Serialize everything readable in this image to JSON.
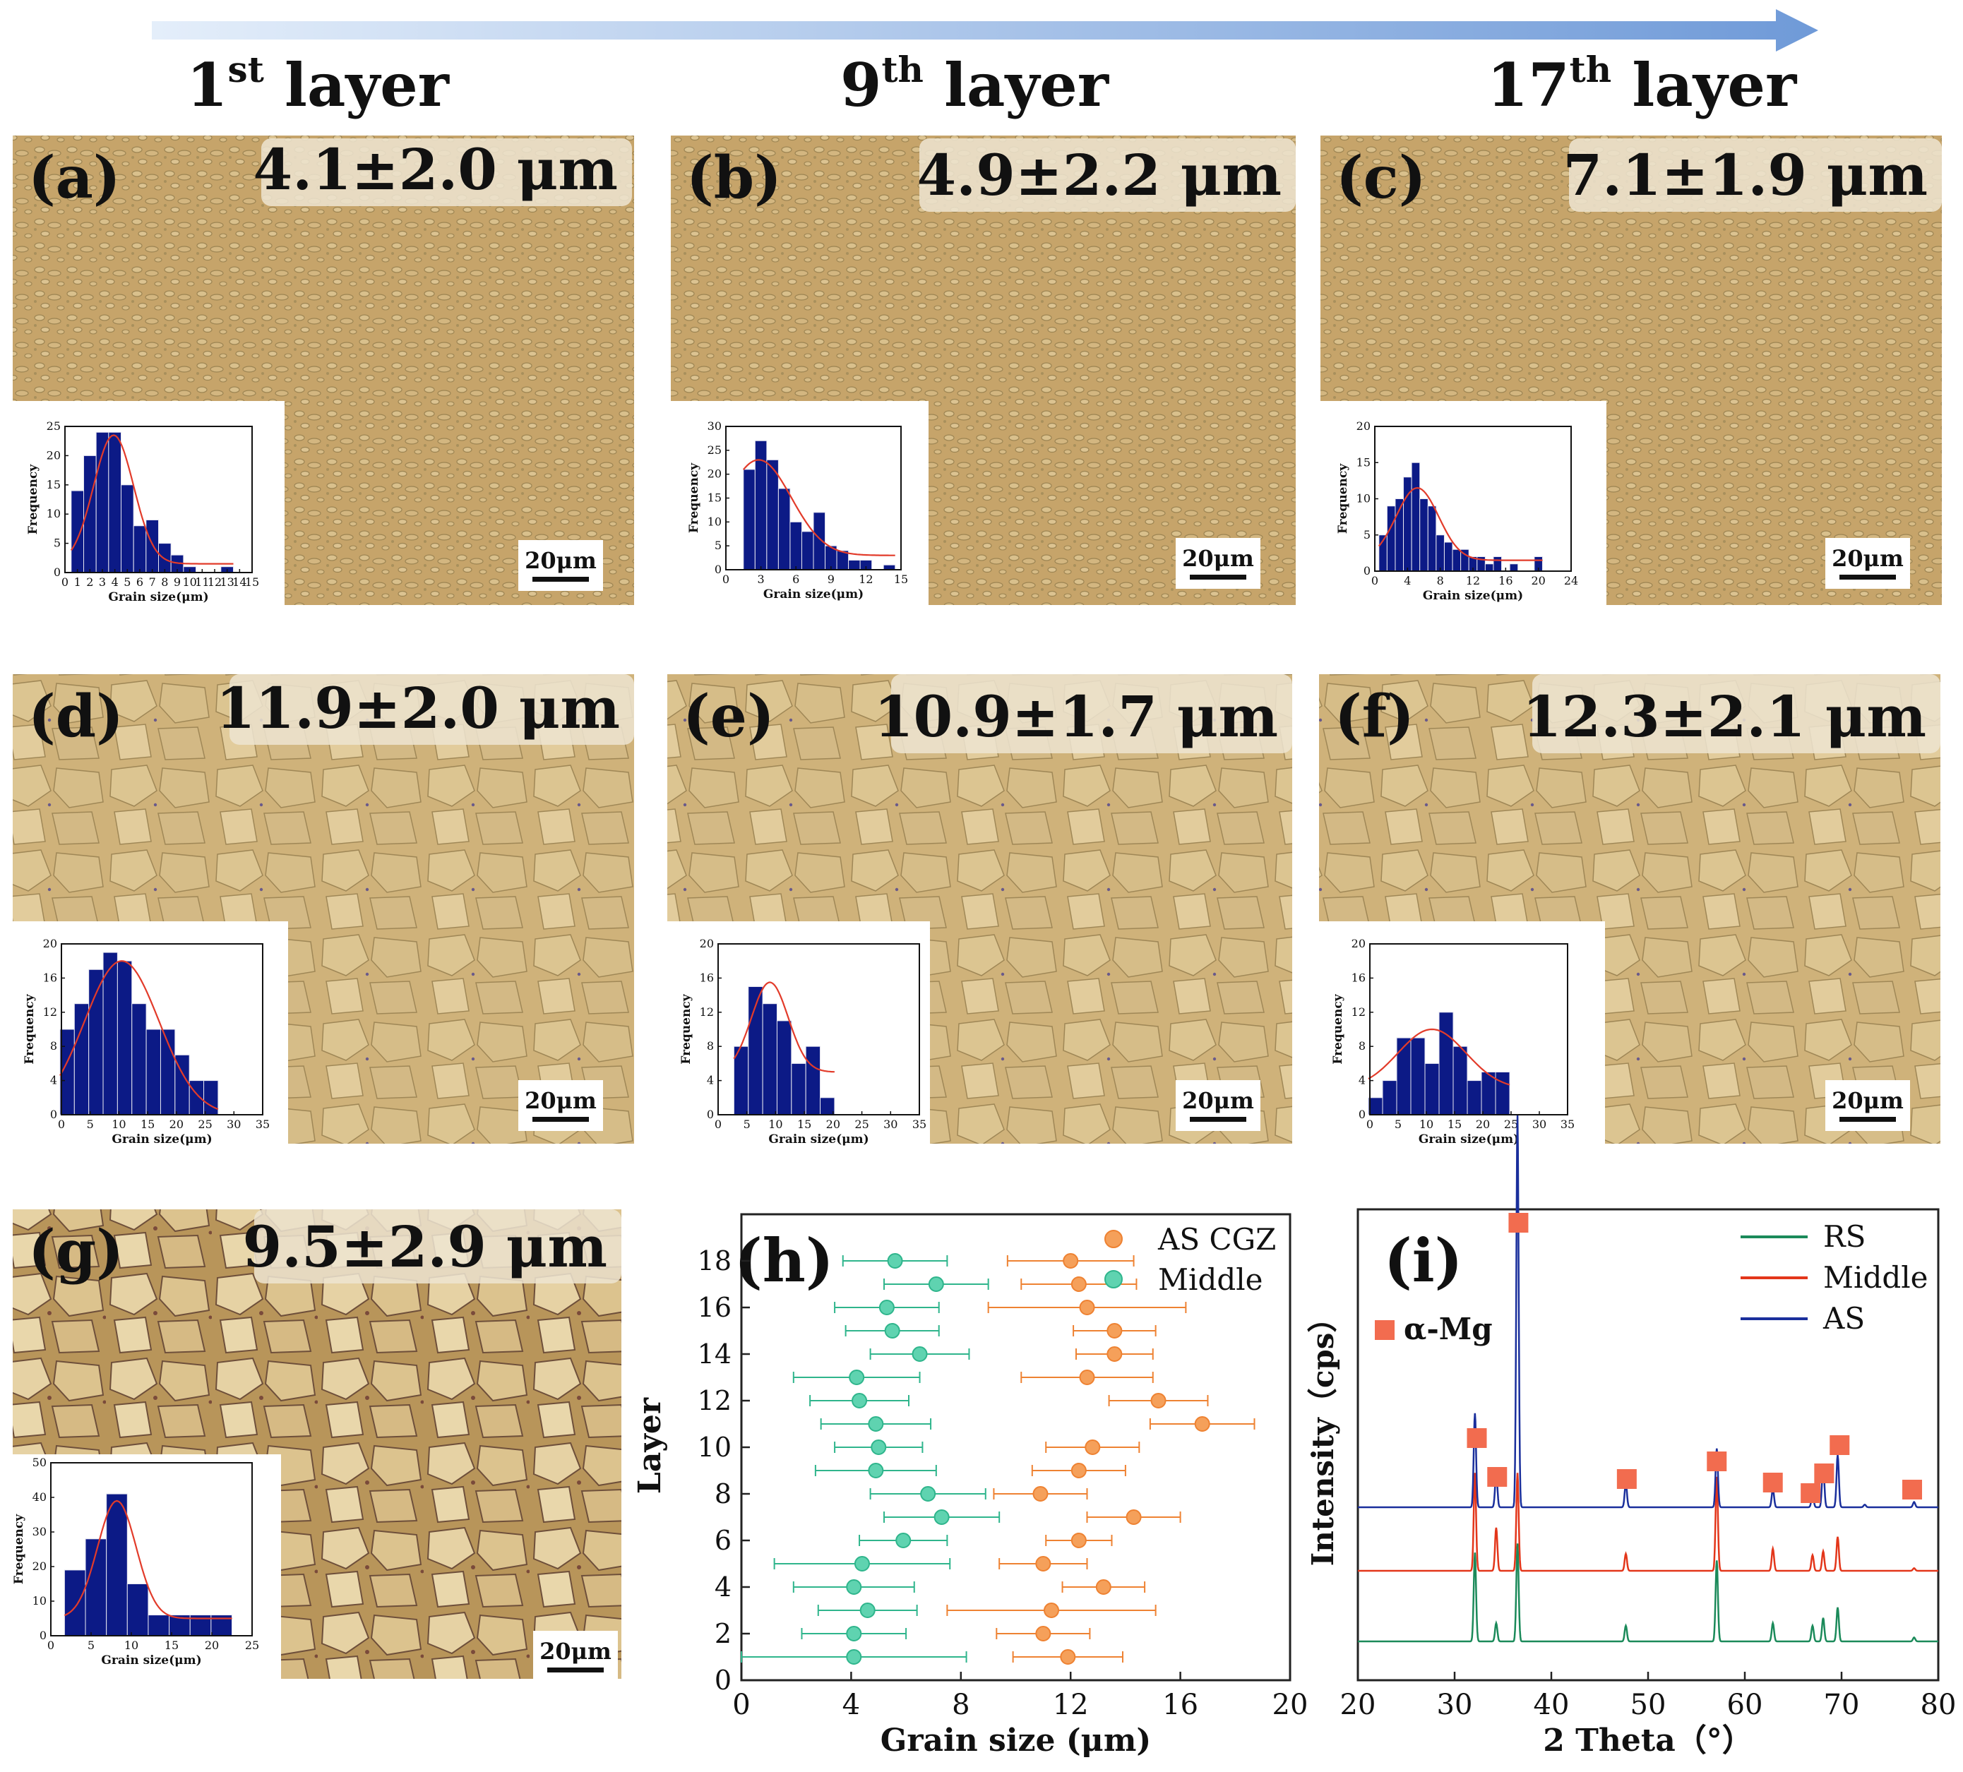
{
  "header": {
    "layers": [
      {
        "num": "1",
        "sup": "st",
        "word": " layer"
      },
      {
        "num": "9",
        "sup": "th",
        "word": " layer"
      },
      {
        "num": "17",
        "sup": "th",
        "word": " layer"
      }
    ]
  },
  "panels": [
    {
      "letter": "(a)",
      "label": "4.1±2.0 μm",
      "scalebar": "20μm",
      "micro": "fine"
    },
    {
      "letter": "(b)",
      "label": "4.9±2.2 μm",
      "scalebar": "20μm",
      "micro": "fine"
    },
    {
      "letter": "(c)",
      "label": "7.1±1.9 μm",
      "scalebar": "20μm",
      "micro": "fine"
    },
    {
      "letter": "(d)",
      "label": "11.9±2.0 μm",
      "scalebar": "20μm",
      "micro": "coarse"
    },
    {
      "letter": "(e)",
      "label": "10.9±1.7 μm",
      "scalebar": "20μm",
      "micro": "coarse"
    },
    {
      "letter": "(f)",
      "label": "12.3±2.1 μm",
      "scalebar": "20μm",
      "micro": "coarse"
    },
    {
      "letter": "(g)",
      "label": "9.5±2.9 μm",
      "scalebar": "20μm",
      "micro": "coarse"
    }
  ],
  "chart_data": [
    {
      "panel": "a",
      "type": "bar",
      "xlabel": "Grain size(μm)",
      "ylabel": "Frequency",
      "xlim": [
        0,
        15
      ],
      "ylim": [
        0,
        25
      ],
      "xticks": [
        "0",
        "1",
        "2",
        "3",
        "4",
        "5",
        "6",
        "7",
        "8",
        "9",
        "10",
        "11",
        "12",
        "13",
        "14",
        "15"
      ],
      "yticks": [
        "0",
        "5",
        "10",
        "15",
        "20",
        "25"
      ],
      "bin_width": 1,
      "bins": [
        [
          1,
          14
        ],
        [
          2,
          20
        ],
        [
          3,
          24
        ],
        [
          4,
          24
        ],
        [
          5,
          15
        ],
        [
          6,
          8
        ],
        [
          7,
          9
        ],
        [
          8,
          5
        ],
        [
          9,
          3
        ],
        [
          10,
          1
        ],
        [
          11,
          0
        ],
        [
          12,
          0
        ],
        [
          13,
          1
        ]
      ],
      "fit": {
        "mu": 3.9,
        "sigma": 1.6,
        "amp": 22,
        "base": 1.5
      }
    },
    {
      "panel": "b",
      "type": "bar",
      "xlabel": "Grain size(μm)",
      "ylabel": "Frequency",
      "xlim": [
        0,
        15
      ],
      "ylim": [
        0,
        30
      ],
      "xticks": [
        "0",
        "3",
        "6",
        "9",
        "12",
        "15"
      ],
      "yticks": [
        "0",
        "5",
        "10",
        "15",
        "20",
        "25",
        "30"
      ],
      "bin_width": 1,
      "bins": [
        [
          2,
          21
        ],
        [
          3,
          27
        ],
        [
          4,
          23
        ],
        [
          5,
          17
        ],
        [
          6,
          10
        ],
        [
          7,
          8
        ],
        [
          8,
          12
        ],
        [
          9,
          5
        ],
        [
          10,
          4
        ],
        [
          11,
          2
        ],
        [
          12,
          2
        ],
        [
          14,
          1
        ]
      ],
      "fit": {
        "mu": 2.8,
        "sigma": 2.8,
        "amp": 20,
        "base": 3
      }
    },
    {
      "panel": "c",
      "type": "bar",
      "xlabel": "Grain size(μm)",
      "ylabel": "Frequency",
      "xlim": [
        0,
        24
      ],
      "ylim": [
        0,
        20
      ],
      "xticks": [
        "0",
        "4",
        "8",
        "12",
        "16",
        "20",
        "24"
      ],
      "yticks": [
        "0",
        "5",
        "10",
        "15",
        "20"
      ],
      "bin_width": 1,
      "bins": [
        [
          1,
          5
        ],
        [
          2,
          9
        ],
        [
          3,
          10
        ],
        [
          4,
          13
        ],
        [
          5,
          15
        ],
        [
          6,
          10
        ],
        [
          7,
          9
        ],
        [
          8,
          5
        ],
        [
          9,
          4
        ],
        [
          10,
          3
        ],
        [
          11,
          3
        ],
        [
          12,
          2
        ],
        [
          13,
          2
        ],
        [
          14,
          1
        ],
        [
          15,
          2
        ],
        [
          17,
          1
        ],
        [
          20,
          2
        ]
      ],
      "fit": {
        "mu": 5.2,
        "sigma": 2.6,
        "amp": 10,
        "base": 1.5
      }
    },
    {
      "panel": "d",
      "type": "bar",
      "xlabel": "Grain size(μm)",
      "ylabel": "Frequency",
      "xlim": [
        0,
        35
      ],
      "ylim": [
        0,
        20
      ],
      "xticks": [
        "0",
        "5",
        "10",
        "15",
        "20",
        "25",
        "30",
        "35"
      ],
      "yticks": [
        "0",
        "4",
        "8",
        "12",
        "16",
        "20"
      ],
      "bin_width": 2.5,
      "bins": [
        [
          1,
          10
        ],
        [
          3.5,
          13
        ],
        [
          6,
          17
        ],
        [
          8.5,
          19
        ],
        [
          11,
          18
        ],
        [
          13.5,
          13
        ],
        [
          16,
          10
        ],
        [
          18.5,
          10
        ],
        [
          21,
          7
        ],
        [
          23.5,
          4
        ],
        [
          26,
          4
        ]
      ],
      "fit": {
        "mu": 10.5,
        "sigma": 6.5,
        "amp": 18,
        "base": 0
      }
    },
    {
      "panel": "e",
      "type": "bar",
      "xlabel": "Grain size(μm)",
      "ylabel": "Frequency",
      "xlim": [
        0,
        35
      ],
      "ylim": [
        0,
        20
      ],
      "xticks": [
        "0",
        "5",
        "10",
        "15",
        "20",
        "25",
        "30",
        "35"
      ],
      "yticks": [
        "0",
        "4",
        "8",
        "12",
        "16",
        "20"
      ],
      "bin_width": 2.5,
      "bins": [
        [
          4,
          8
        ],
        [
          6.5,
          15
        ],
        [
          9,
          13
        ],
        [
          11.5,
          11
        ],
        [
          14,
          6
        ],
        [
          16.5,
          8
        ],
        [
          19,
          2
        ]
      ],
      "fit": {
        "mu": 9,
        "sigma": 3.2,
        "amp": 10.5,
        "base": 5
      }
    },
    {
      "panel": "f",
      "type": "bar",
      "xlabel": "Grain size(μm)",
      "ylabel": "Frequency",
      "xlim": [
        0,
        35
      ],
      "ylim": [
        0,
        20
      ],
      "xticks": [
        "0",
        "5",
        "10",
        "15",
        "20",
        "25",
        "30",
        "35"
      ],
      "yticks": [
        "0",
        "4",
        "8",
        "12",
        "16",
        "20"
      ],
      "bin_width": 2.5,
      "bins": [
        [
          1,
          2
        ],
        [
          3.5,
          4
        ],
        [
          6,
          9
        ],
        [
          8.5,
          9
        ],
        [
          11,
          6
        ],
        [
          13.5,
          12
        ],
        [
          16,
          8
        ],
        [
          18.5,
          4
        ],
        [
          21,
          5
        ],
        [
          23.5,
          5
        ]
      ],
      "fit": {
        "mu": 11,
        "sigma": 6,
        "amp": 7,
        "base": 3
      }
    },
    {
      "panel": "g",
      "type": "bar",
      "xlabel": "Grain size(μm)",
      "ylabel": "Frequency",
      "xlim": [
        0,
        25
      ],
      "ylim": [
        0,
        50
      ],
      "xticks": [
        "0",
        "5",
        "10",
        "15",
        "20",
        "25"
      ],
      "yticks": [
        "0",
        "10",
        "20",
        "30",
        "40",
        "50"
      ],
      "bin_width": 2.6,
      "bins": [
        [
          3,
          19
        ],
        [
          5.6,
          28
        ],
        [
          8.2,
          41
        ],
        [
          10.8,
          15
        ],
        [
          13.4,
          6
        ],
        [
          16,
          6
        ],
        [
          18.6,
          6
        ],
        [
          21.2,
          6
        ]
      ],
      "fit": {
        "mu": 8.2,
        "sigma": 2.4,
        "amp": 34,
        "base": 5
      }
    },
    {
      "panel": "h",
      "type": "scatter",
      "xlabel": "Grain size (μm)",
      "ylabel": "Layer",
      "xlim": [
        0,
        20
      ],
      "ylim": [
        0,
        20
      ],
      "xticks": [
        "0",
        "4",
        "8",
        "12",
        "16",
        "20"
      ],
      "yticks": [
        "0",
        "2",
        "4",
        "6",
        "8",
        "10",
        "12",
        "14",
        "16",
        "18"
      ],
      "legend": "top-right",
      "series": [
        {
          "name": "AS CGZ",
          "color": "#f5a05a",
          "edge": "#ee8232",
          "points": [
            [
              1,
              11.9,
              2.0
            ],
            [
              2,
              11.0,
              1.7
            ],
            [
              3,
              11.3,
              3.8
            ],
            [
              4,
              13.2,
              1.5
            ],
            [
              5,
              11.0,
              1.6
            ],
            [
              6,
              12.3,
              1.2
            ],
            [
              7,
              14.3,
              1.7
            ],
            [
              8,
              10.9,
              1.7
            ],
            [
              9,
              12.3,
              1.7
            ],
            [
              10,
              12.8,
              1.7
            ],
            [
              11,
              16.8,
              1.9
            ],
            [
              12,
              15.2,
              1.8
            ],
            [
              13,
              12.6,
              2.4
            ],
            [
              14,
              13.6,
              1.4
            ],
            [
              15,
              13.6,
              1.5
            ],
            [
              16,
              12.6,
              3.6
            ],
            [
              17,
              12.3,
              2.1
            ],
            [
              18,
              12.0,
              2.3
            ]
          ]
        },
        {
          "name": "Middle",
          "color": "#5fd3b0",
          "edge": "#2fb58c",
          "points": [
            [
              1,
              4.1,
              4.1
            ],
            [
              2,
              4.1,
              1.9
            ],
            [
              3,
              4.6,
              1.8
            ],
            [
              4,
              4.1,
              2.2
            ],
            [
              5,
              4.4,
              3.2
            ],
            [
              6,
              5.9,
              1.6
            ],
            [
              7,
              7.3,
              2.1
            ],
            [
              8,
              6.8,
              2.1
            ],
            [
              9,
              4.9,
              2.2
            ],
            [
              10,
              5.0,
              1.6
            ],
            [
              11,
              4.9,
              2.0
            ],
            [
              12,
              4.3,
              1.8
            ],
            [
              13,
              4.2,
              2.3
            ],
            [
              14,
              6.5,
              1.8
            ],
            [
              15,
              5.5,
              1.7
            ],
            [
              16,
              5.3,
              1.9
            ],
            [
              17,
              7.1,
              1.9
            ],
            [
              18,
              5.6,
              1.9
            ]
          ]
        }
      ]
    },
    {
      "panel": "i",
      "type": "line",
      "xlabel": "2 Theta（°）",
      "ylabel": "Intensity（cps）",
      "xlim": [
        20,
        80
      ],
      "xticks": [
        "20",
        "30",
        "40",
        "50",
        "60",
        "70",
        "80"
      ],
      "legend": "top-right",
      "marker_label": "α-Mg",
      "marker_color": "#f26c4f",
      "series": [
        {
          "name": "RS",
          "color": "#1b8a5a",
          "peaks": [
            [
              32.1,
              0.68
            ],
            [
              34.3,
              0.14
            ],
            [
              36.5,
              0.75
            ],
            [
              47.7,
              0.12
            ],
            [
              57.1,
              0.62
            ],
            [
              62.9,
              0.14
            ],
            [
              67.0,
              0.12
            ],
            [
              68.1,
              0.18
            ],
            [
              69.6,
              0.26
            ],
            [
              77.5,
              0.03
            ]
          ]
        },
        {
          "name": "Middle",
          "color": "#e3361a",
          "peaks": [
            [
              32.1,
              0.75
            ],
            [
              34.3,
              0.33
            ],
            [
              36.5,
              0.75
            ],
            [
              47.7,
              0.13
            ],
            [
              57.1,
              0.72
            ],
            [
              62.9,
              0.17
            ],
            [
              67.0,
              0.12
            ],
            [
              68.1,
              0.15
            ],
            [
              69.6,
              0.26
            ],
            [
              77.5,
              0.02
            ]
          ]
        },
        {
          "name": "AS",
          "color": "#1a2f9c",
          "peaks": [
            [
              32.1,
              0.72
            ],
            [
              34.3,
              0.26
            ],
            [
              36.5,
              3.0
            ],
            [
              47.7,
              0.18
            ],
            [
              57.1,
              0.45
            ],
            [
              62.9,
              0.14
            ],
            [
              67.0,
              0.1
            ],
            [
              68.1,
              0.33
            ],
            [
              69.6,
              0.4
            ],
            [
              72.4,
              0.02
            ],
            [
              77.5,
              0.04
            ]
          ]
        }
      ],
      "markers": [
        32.3,
        34.4,
        36.6,
        47.8,
        57.1,
        62.9,
        66.8,
        68.2,
        69.8,
        77.3
      ]
    }
  ]
}
